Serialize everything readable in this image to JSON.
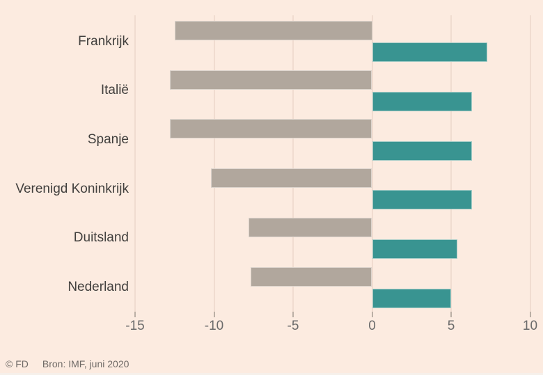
{
  "chart_data": {
    "type": "bar",
    "orientation": "horizontal",
    "title": "",
    "xlabel": "",
    "ylabel": "",
    "categories": [
      "Frankrijk",
      "Italië",
      "Spanje",
      "Verenigd Koninkrijk",
      "Duitsland",
      "Nederland"
    ],
    "series": [
      {
        "role": "negative",
        "color": "#b1a79d",
        "values": [
          -12.5,
          -12.8,
          -12.8,
          -10.2,
          -7.8,
          -7.7
        ]
      },
      {
        "role": "positive",
        "color": "#399491",
        "values": [
          7.3,
          6.3,
          6.3,
          6.3,
          5.4,
          5.0
        ]
      }
    ],
    "xlim": [
      -15,
      10
    ],
    "ticks": [
      -15,
      -10,
      -5,
      0,
      5,
      10
    ],
    "grid": "vertical",
    "legend_position": "none"
  },
  "colors": {
    "background": "#fcebe0",
    "bar_negative": "#b1a79d",
    "bar_positive": "#399491",
    "gridline": "#f0dcd0",
    "tick_mark": "#bbafa5",
    "tick_label_text": "#6b6b6b",
    "category_label_text": "#413f3d",
    "footer_text": "#6f6a66"
  },
  "footer": {
    "copyright": "© FD",
    "source": "Bron: IMF, juni 2020"
  }
}
